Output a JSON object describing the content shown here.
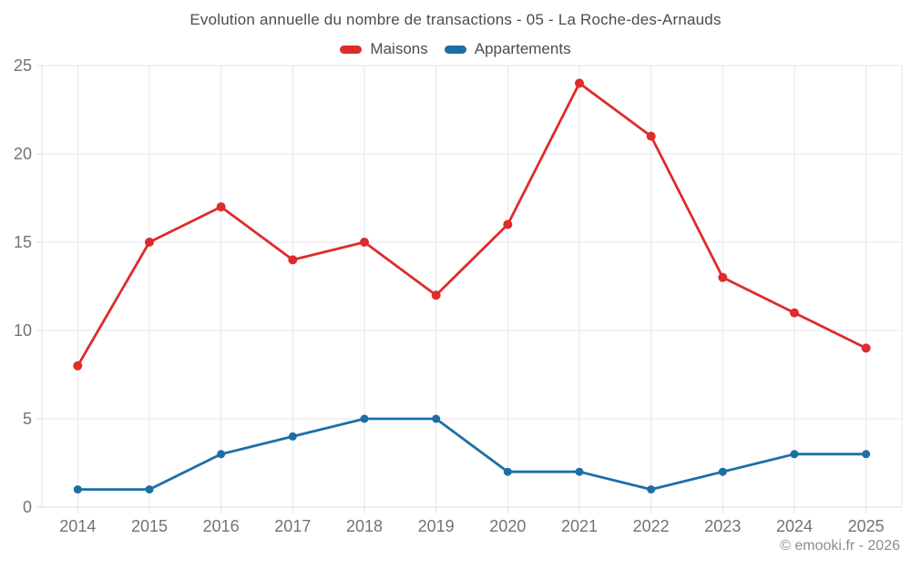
{
  "page": {
    "title": "Evolution annuelle du nombre de transactions - 05 - La Roche-des-Arnauds",
    "footer_credit": "© emooki.fr - 2026"
  },
  "colors": {
    "maisons": "#dd2c2c",
    "appartements": "#1a6fa5",
    "grid": "#e7e7e7",
    "axis": "#dcdcdc",
    "tick_label": "#737373",
    "title_text": "#4c4c4c",
    "footer_text": "#8c8c8c",
    "background": "#ffffff"
  },
  "chart_data": {
    "type": "line",
    "title": "Evolution annuelle du nombre de transactions - 05 - La Roche-des-Arnauds",
    "categories": [
      "2014",
      "2015",
      "2016",
      "2017",
      "2018",
      "2019",
      "2020",
      "2021",
      "2022",
      "2023",
      "2024",
      "2025"
    ],
    "series": [
      {
        "name": "Maisons",
        "color": "#dd2c2c",
        "values": [
          8,
          15,
          17,
          14,
          15,
          12,
          16,
          24,
          21,
          13,
          11,
          9
        ]
      },
      {
        "name": "Appartements",
        "color": "#1a6fa5",
        "values": [
          1,
          1,
          3,
          4,
          5,
          5,
          2,
          2,
          1,
          2,
          3,
          3
        ]
      }
    ],
    "xlabel": "",
    "ylabel": "",
    "ylim": [
      0,
      25
    ],
    "yticks": [
      0,
      5,
      10,
      15,
      20,
      25
    ],
    "grid": true,
    "legend_position": "top",
    "annotation": "© emooki.fr - 2026"
  }
}
